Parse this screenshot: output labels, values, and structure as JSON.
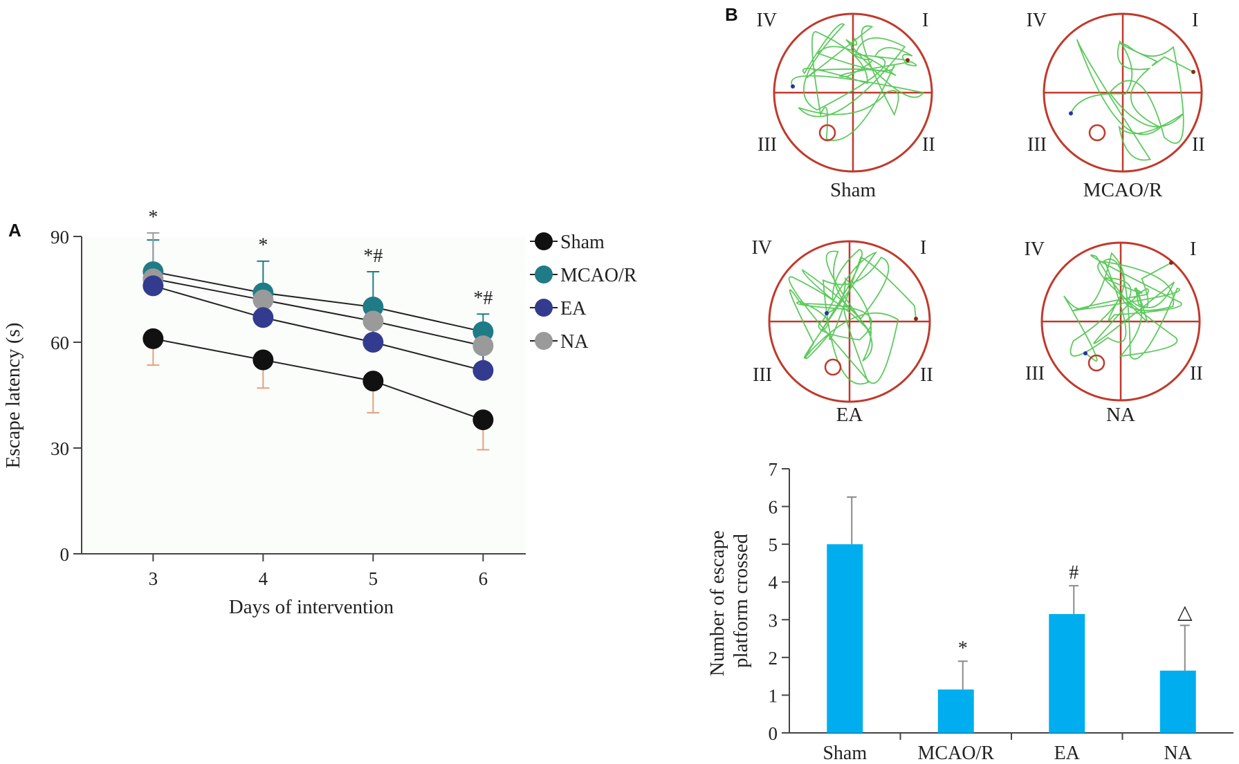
{
  "panels": {
    "a_label": "A",
    "b_label": "B"
  },
  "colors": {
    "sham": "#111111",
    "mcao": "#1f7b86",
    "ea": "#333b8f",
    "na": "#9a9a9a",
    "err_sham": "#e4a07e",
    "err_mcao": "#1f7b86",
    "err_ea": "#333b8f",
    "err_na": "#9a9a9a",
    "bar": "#00aeef",
    "bar_err": "#8a8a8a",
    "track": "#4cc34c",
    "pool": "#c0392b"
  },
  "chart_data": [
    {
      "type": "line",
      "xlabel": "Days of intervention",
      "ylabel": "Escape latency (s)",
      "x": [
        3,
        4,
        5,
        6
      ],
      "ylim": [
        0,
        90
      ],
      "yticks": [
        0,
        30,
        60,
        90
      ],
      "legend_position": "top-right",
      "annotations": [
        "*",
        "*",
        "*#",
        "*#"
      ],
      "series": [
        {
          "name": "Sham",
          "key": "sham",
          "values": [
            61,
            55,
            49,
            38
          ],
          "errors": [
            7.5,
            8,
            9,
            8.5
          ]
        },
        {
          "name": "MCAO/R",
          "key": "mcao",
          "values": [
            80,
            74,
            70,
            63
          ],
          "errors": [
            9,
            9,
            10,
            5
          ]
        },
        {
          "name": "EA",
          "key": "ea",
          "values": [
            76,
            67,
            60,
            52
          ],
          "errors": [
            0,
            0,
            6,
            6
          ]
        },
        {
          "name": "NA",
          "key": "na",
          "values": [
            78,
            72,
            66,
            59
          ],
          "errors": [
            13,
            0,
            0,
            0
          ]
        }
      ]
    },
    {
      "type": "bar",
      "ylabel": "Number of escape platform crossed",
      "ylabel_lines": [
        "Number of escape",
        "platform crossed"
      ],
      "categories": [
        "Sham",
        "MCAO/R",
        "EA",
        "NA"
      ],
      "values": [
        5.0,
        1.15,
        3.15,
        1.65
      ],
      "errors": [
        1.25,
        0.75,
        0.75,
        1.2
      ],
      "annotations": [
        "",
        "*",
        "#",
        "△"
      ],
      "ylim": [
        0,
        7
      ],
      "yticks": [
        0,
        1,
        2,
        3,
        4,
        5,
        6,
        7
      ]
    }
  ],
  "trajectories": [
    {
      "group": "Sham",
      "quadrants": [
        "IV",
        "I",
        "III",
        "II"
      ]
    },
    {
      "group": "MCAO/R",
      "quadrants": [
        "IV",
        "I",
        "III",
        "II"
      ]
    },
    {
      "group": "EA",
      "quadrants": [
        "IV",
        "I",
        "III",
        "II"
      ]
    },
    {
      "group": "NA",
      "quadrants": [
        "IV",
        "I",
        "III",
        "II"
      ]
    }
  ]
}
